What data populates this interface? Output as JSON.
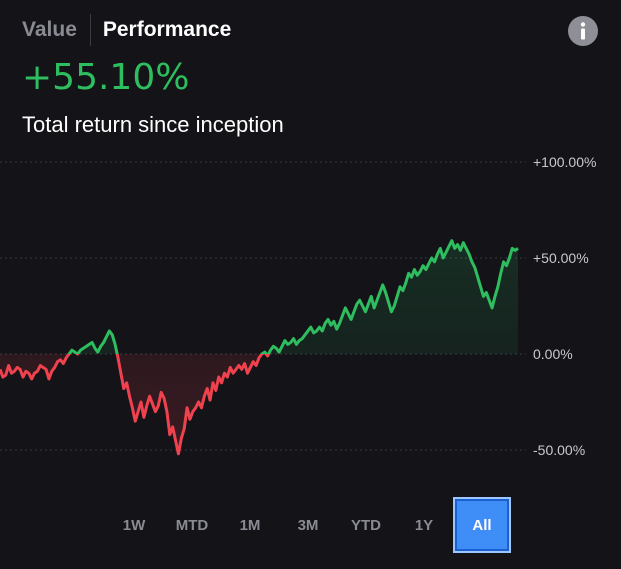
{
  "tabs": [
    {
      "label": "Value",
      "active": false
    },
    {
      "label": "Performance",
      "active": true
    }
  ],
  "info_icon": "info-icon",
  "summary": {
    "value": "+55.10%",
    "caption": "Total return since inception"
  },
  "colors": {
    "positive": "#2ebd5f",
    "negative": "#f0424e",
    "selected_range": "#3f8ef7"
  },
  "ranges": [
    "1W",
    "MTD",
    "1M",
    "3M",
    "YTD",
    "1Y",
    "All"
  ],
  "selected_range": "All",
  "chart_data": {
    "type": "line",
    "series": [
      {
        "values": [
          -8,
          -12,
          -11,
          -6,
          -10,
          -9,
          -7,
          -8,
          -12,
          -9,
          -10,
          -13,
          -10,
          -9,
          -6,
          -7,
          -8,
          -13,
          -9,
          -7,
          -4,
          -3,
          -5,
          -2,
          0,
          2,
          1,
          0,
          2,
          3,
          4,
          5,
          6,
          3,
          1,
          4,
          6,
          9,
          12,
          10,
          5,
          -2,
          -10,
          -18,
          -15,
          -22,
          -28,
          -35,
          -30,
          -25,
          -33,
          -27,
          -22,
          -26,
          -30,
          -27,
          -20,
          -23,
          -30,
          -42,
          -38,
          -45,
          -52,
          -44,
          -39,
          -28,
          -34,
          -30,
          -28,
          -25,
          -28,
          -22,
          -18,
          -24,
          -15,
          -19,
          -12,
          -15,
          -10,
          -12,
          -7,
          -10,
          -8,
          -6,
          -8,
          -5,
          -10,
          -7,
          -4,
          -6,
          -2,
          0,
          1,
          -1,
          2,
          4,
          3,
          1,
          4,
          7,
          5,
          6,
          8,
          5,
          7,
          8,
          10,
          12,
          14,
          11,
          12,
          14,
          12,
          16,
          18,
          15,
          17,
          13,
          16,
          20,
          24,
          21,
          18,
          22,
          26,
          28,
          25,
          22,
          26,
          30,
          24,
          28,
          32,
          36,
          32,
          27,
          22,
          25,
          30,
          35,
          33,
          37,
          42,
          40,
          44,
          41,
          43,
          46,
          44,
          47,
          50,
          48,
          52,
          55,
          50,
          53,
          56,
          59,
          55,
          57,
          54,
          58,
          55,
          52,
          48,
          45,
          40,
          35,
          30,
          32,
          28,
          24,
          30,
          35,
          42,
          48,
          46,
          50,
          55,
          54,
          55
        ]
      }
    ],
    "ylim": [
      -60,
      100
    ],
    "yticks": [
      100,
      50,
      0,
      -50
    ],
    "ytick_labels": [
      "+100.00%",
      "+50.00%",
      "0.00%",
      "-50.00%"
    ],
    "grid": true
  }
}
